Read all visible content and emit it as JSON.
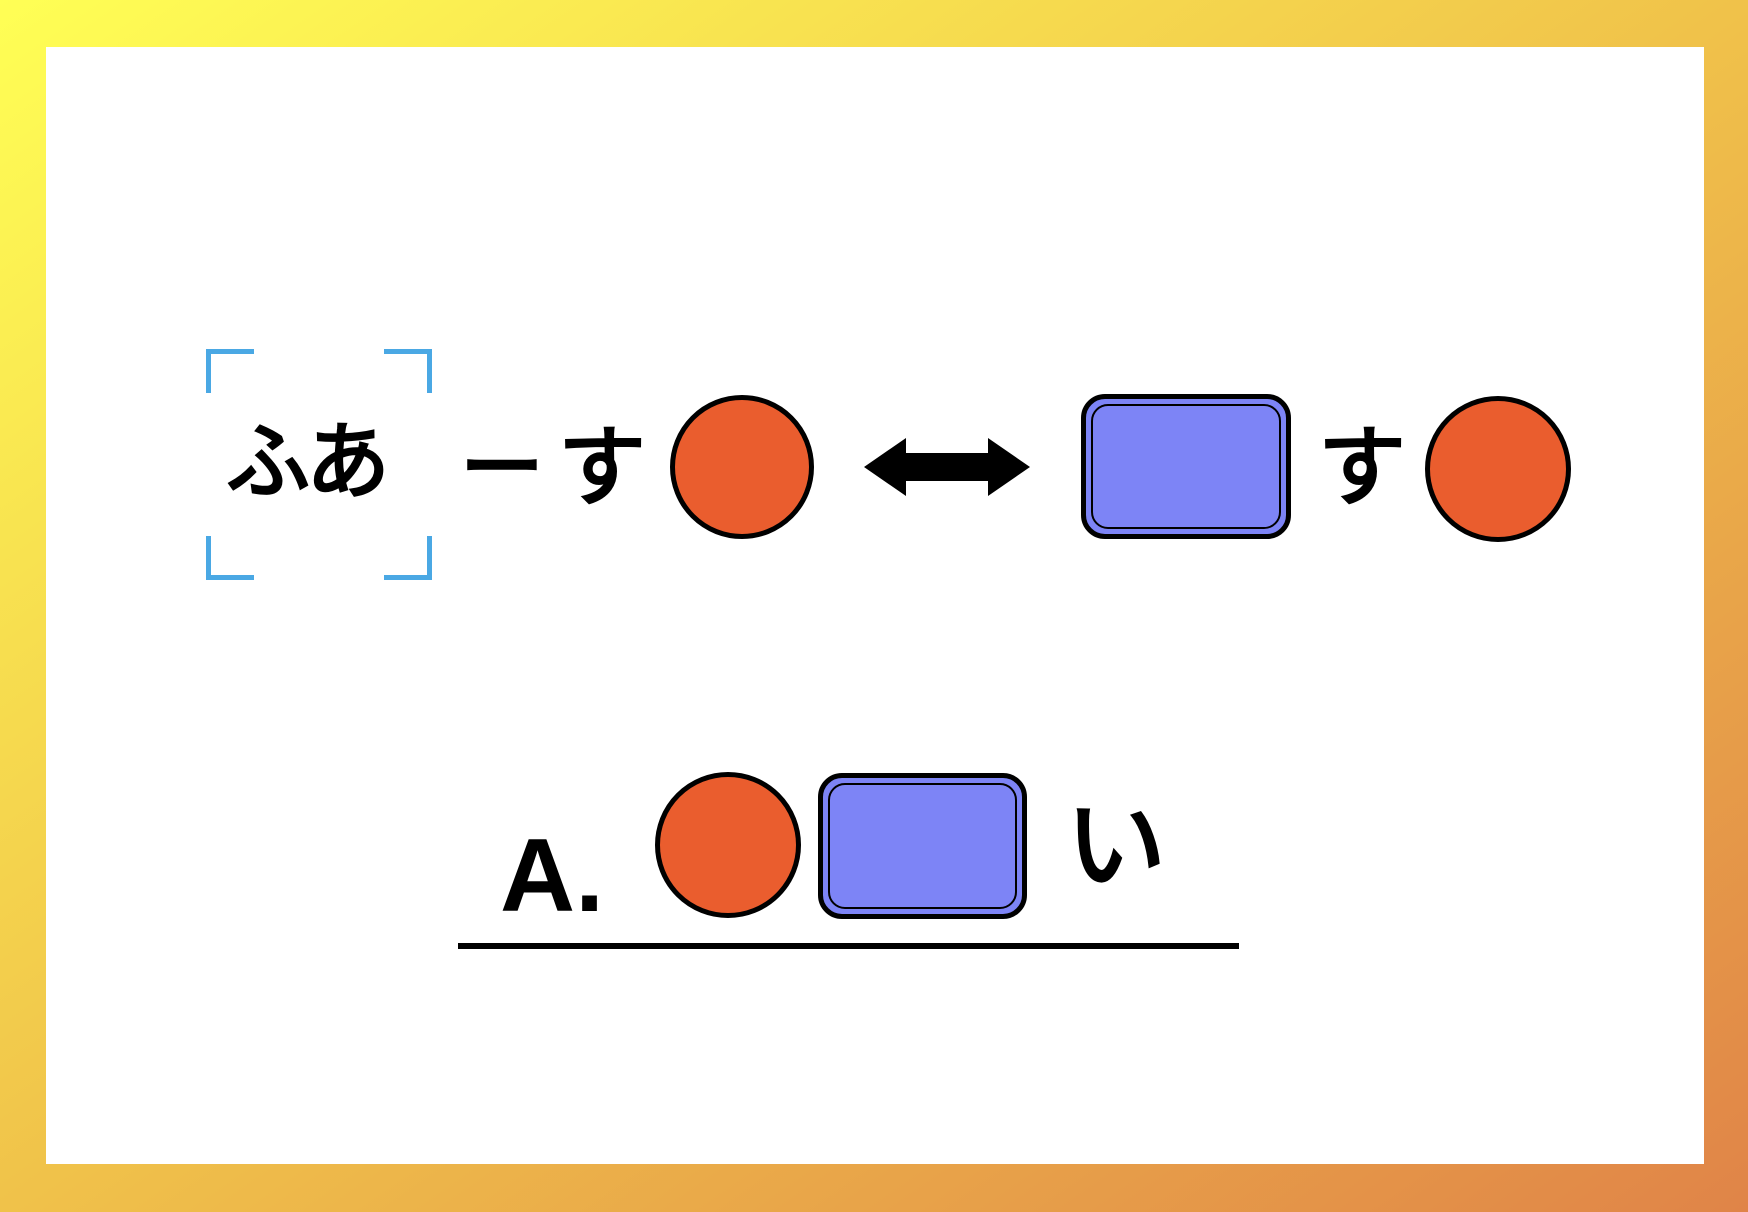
{
  "colors": {
    "frame_start": "#ffff55",
    "frame_end": "#e08448",
    "circle_fill": "#ea5d2e",
    "rect_fill": "#7d84f6",
    "bracket": "#4aa8e4"
  },
  "puzzle": {
    "word_highlighted": "ふあ",
    "dash": "ー",
    "su_left": "す",
    "su_right": "す",
    "double_arrow": "double-arrow-icon"
  },
  "answer": {
    "label": "A.",
    "suffix": "い"
  }
}
